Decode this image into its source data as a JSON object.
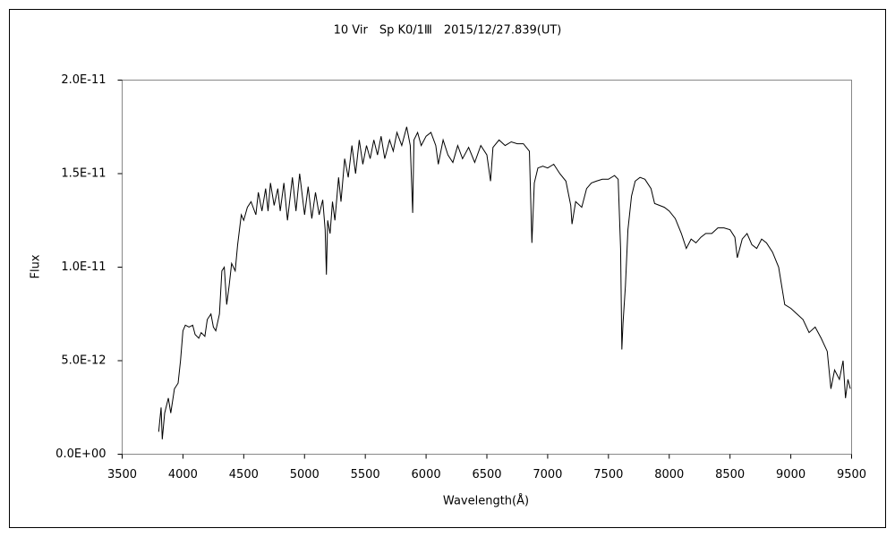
{
  "chart_data": {
    "type": "line",
    "title": "10 Vir　Sp K0/1Ⅲ　2015/12/27.839(UT)",
    "x_label": "Wavelength(Å)",
    "y_label": "Flux",
    "xlim": [
      3500,
      9500
    ],
    "xticks": [
      3500,
      4000,
      4500,
      5000,
      5500,
      6000,
      6500,
      7000,
      7500,
      8000,
      8500,
      9000,
      9500
    ],
    "ylim": [
      0,
      2e-11
    ],
    "yticks": [
      {
        "value": 0,
        "label": "0.0E+00"
      },
      {
        "value": 5e-12,
        "label": "5.0E-12"
      },
      {
        "value": 1e-11,
        "label": "1.0E-11"
      },
      {
        "value": 1.5e-11,
        "label": "1.5E-11"
      },
      {
        "value": 2e-11,
        "label": "2.0E-11"
      }
    ],
    "grid": false,
    "series": [
      {
        "color": "#000000",
        "x": [
          3800,
          3820,
          3830,
          3850,
          3880,
          3900,
          3930,
          3960,
          3980,
          4000,
          4020,
          4050,
          4080,
          4100,
          4130,
          4150,
          4180,
          4200,
          4230,
          4250,
          4270,
          4300,
          4320,
          4340,
          4360,
          4380,
          4400,
          4430,
          4450,
          4480,
          4500,
          4530,
          4560,
          4600,
          4620,
          4650,
          4680,
          4700,
          4720,
          4750,
          4780,
          4800,
          4830,
          4860,
          4900,
          4930,
          4960,
          5000,
          5030,
          5060,
          5090,
          5120,
          5150,
          5170,
          5180,
          5190,
          5210,
          5230,
          5250,
          5280,
          5300,
          5330,
          5360,
          5390,
          5420,
          5450,
          5480,
          5510,
          5540,
          5570,
          5600,
          5630,
          5660,
          5700,
          5730,
          5760,
          5800,
          5840,
          5870,
          5890,
          5900,
          5930,
          5960,
          6000,
          6040,
          6080,
          6100,
          6140,
          6180,
          6220,
          6260,
          6300,
          6350,
          6400,
          6450,
          6500,
          6530,
          6550,
          6600,
          6650,
          6700,
          6750,
          6800,
          6850,
          6870,
          6890,
          6920,
          6960,
          7000,
          7050,
          7100,
          7150,
          7190,
          7200,
          7230,
          7280,
          7320,
          7360,
          7400,
          7450,
          7500,
          7550,
          7580,
          7600,
          7610,
          7620,
          7640,
          7660,
          7690,
          7720,
          7760,
          7800,
          7850,
          7880,
          7920,
          7960,
          8000,
          8050,
          8100,
          8140,
          8180,
          8220,
          8260,
          8300,
          8350,
          8400,
          8450,
          8500,
          8540,
          8560,
          8600,
          8640,
          8680,
          8720,
          8760,
          8800,
          8850,
          8900,
          8950,
          9000,
          9050,
          9100,
          9150,
          9200,
          9250,
          9300,
          9330,
          9360,
          9400,
          9430,
          9450,
          9470,
          9490
        ],
        "values": [
          1.2e-12,
          2.5e-12,
          8e-13,
          2.2e-12,
          3e-12,
          2.2e-12,
          3.5e-12,
          3.8e-12,
          5e-12,
          6.6e-12,
          6.9e-12,
          6.8e-12,
          6.9e-12,
          6.4e-12,
          6.2e-12,
          6.5e-12,
          6.3e-12,
          7.2e-12,
          7.5e-12,
          6.8e-12,
          6.6e-12,
          7.5e-12,
          9.8e-12,
          1e-11,
          8e-12,
          9e-12,
          1.02e-11,
          9.8e-12,
          1.12e-11,
          1.28e-11,
          1.25e-11,
          1.32e-11,
          1.35e-11,
          1.28e-11,
          1.4e-11,
          1.3e-11,
          1.42e-11,
          1.3e-11,
          1.45e-11,
          1.33e-11,
          1.42e-11,
          1.3e-11,
          1.45e-11,
          1.25e-11,
          1.48e-11,
          1.3e-11,
          1.5e-11,
          1.28e-11,
          1.43e-11,
          1.26e-11,
          1.4e-11,
          1.28e-11,
          1.36e-11,
          1.2e-11,
          9.6e-12,
          1.25e-11,
          1.18e-11,
          1.35e-11,
          1.25e-11,
          1.48e-11,
          1.35e-11,
          1.58e-11,
          1.48e-11,
          1.65e-11,
          1.5e-11,
          1.68e-11,
          1.55e-11,
          1.65e-11,
          1.58e-11,
          1.68e-11,
          1.6e-11,
          1.7e-11,
          1.58e-11,
          1.68e-11,
          1.62e-11,
          1.72e-11,
          1.65e-11,
          1.75e-11,
          1.65e-11,
          1.29e-11,
          1.68e-11,
          1.72e-11,
          1.65e-11,
          1.7e-11,
          1.72e-11,
          1.65e-11,
          1.55e-11,
          1.68e-11,
          1.6e-11,
          1.56e-11,
          1.65e-11,
          1.58e-11,
          1.64e-11,
          1.56e-11,
          1.65e-11,
          1.6e-11,
          1.46e-11,
          1.64e-11,
          1.68e-11,
          1.65e-11,
          1.67e-11,
          1.66e-11,
          1.66e-11,
          1.62e-11,
          1.13e-11,
          1.45e-11,
          1.53e-11,
          1.54e-11,
          1.53e-11,
          1.55e-11,
          1.5e-11,
          1.46e-11,
          1.33e-11,
          1.23e-11,
          1.35e-11,
          1.32e-11,
          1.42e-11,
          1.45e-11,
          1.46e-11,
          1.47e-11,
          1.47e-11,
          1.49e-11,
          1.47e-11,
          1.1e-11,
          5.6e-12,
          7e-12,
          9e-12,
          1.2e-11,
          1.38e-11,
          1.46e-11,
          1.48e-11,
          1.47e-11,
          1.42e-11,
          1.34e-11,
          1.33e-11,
          1.32e-11,
          1.3e-11,
          1.26e-11,
          1.18e-11,
          1.1e-11,
          1.15e-11,
          1.13e-11,
          1.16e-11,
          1.18e-11,
          1.18e-11,
          1.21e-11,
          1.21e-11,
          1.2e-11,
          1.16e-11,
          1.05e-11,
          1.15e-11,
          1.18e-11,
          1.12e-11,
          1.1e-11,
          1.15e-11,
          1.13e-11,
          1.08e-11,
          1e-11,
          8e-12,
          7.8e-12,
          7.5e-12,
          7.2e-12,
          6.5e-12,
          6.8e-12,
          6.2e-12,
          5.5e-12,
          3.5e-12,
          4.5e-12,
          4e-12,
          5e-12,
          3e-12,
          4e-12,
          3.5e-12
        ]
      }
    ]
  }
}
